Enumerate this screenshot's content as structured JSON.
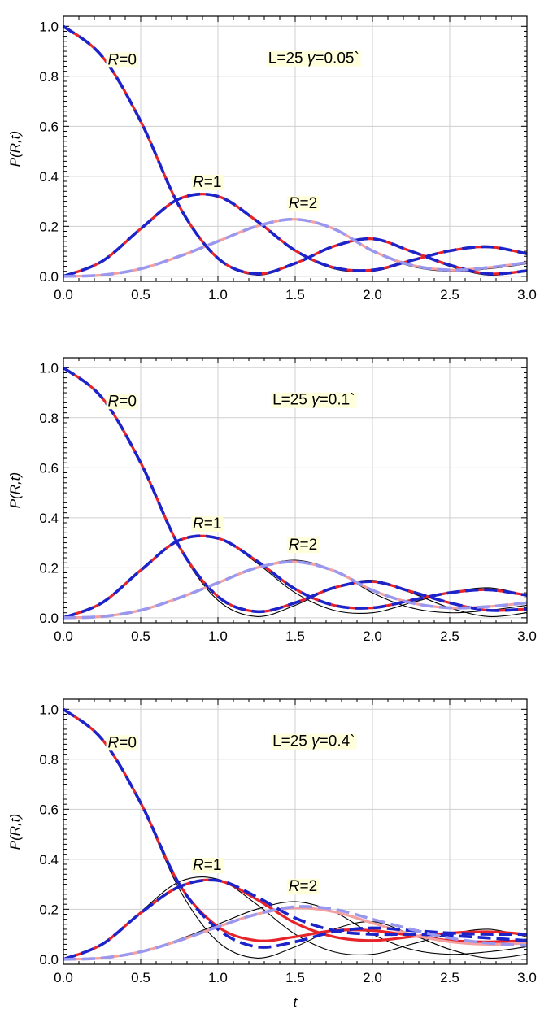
{
  "chart_data": [
    {
      "type": "line",
      "xlabel": "",
      "ylabel": "P(R,t)",
      "xlim": [
        0,
        3
      ],
      "ylim": [
        -0.02,
        1.04
      ],
      "xticks": [
        "0.0",
        "0.5",
        "1.0",
        "1.5",
        "2.0",
        "2.5",
        "3.0"
      ],
      "yticks": [
        "0.0",
        "0.2",
        "0.4",
        "0.6",
        "0.8",
        "1.0"
      ],
      "grid": true,
      "gamma": 0.05,
      "annotations": [
        {
          "italic": "R",
          "text": "=0",
          "x": 0.38,
          "y": 0.87
        },
        {
          "italic": "R",
          "text": "=1",
          "x": 0.93,
          "y": 0.38
        },
        {
          "italic": "R",
          "text": "=2",
          "x": 1.55,
          "y": 0.295
        },
        {
          "prefix": "L=25  ",
          "italic": "γ",
          "text": "=0.05`",
          "x": 1.62,
          "y": 0.875
        }
      ],
      "series": [
        {
          "color": "#000000",
          "style": "thin",
          "x": [
            0,
            0.25,
            0.5,
            0.75,
            1,
            1.25,
            1.5,
            1.75,
            2,
            2.25,
            2.5,
            2.75,
            3
          ],
          "y": [
            1,
            0.88,
            0.62,
            0.28,
            0.07,
            0.005,
            0.05,
            0.12,
            0.15,
            0.1,
            0.04,
            0.005,
            0.02
          ]
        },
        {
          "color": "#000000",
          "style": "thin",
          "x": [
            0,
            0.25,
            0.5,
            0.75,
            1,
            1.25,
            1.5,
            1.75,
            2,
            2.25,
            2.5,
            2.75,
            3
          ],
          "y": [
            0,
            0.06,
            0.19,
            0.31,
            0.32,
            0.22,
            0.1,
            0.03,
            0.02,
            0.06,
            0.1,
            0.12,
            0.09
          ]
        },
        {
          "color": "#000000",
          "style": "thin",
          "x": [
            0,
            0.25,
            0.5,
            0.75,
            1,
            1.25,
            1.5,
            1.75,
            2,
            2.25,
            2.5,
            2.75,
            3
          ],
          "y": [
            0,
            0.005,
            0.03,
            0.08,
            0.14,
            0.2,
            0.23,
            0.19,
            0.1,
            0.04,
            0.02,
            0.03,
            0.05
          ]
        },
        {
          "color": "#e8242b",
          "style": "solid",
          "x": [
            0,
            0.25,
            0.5,
            0.75,
            1,
            1.25,
            1.5,
            1.75,
            2,
            2.25,
            2.5,
            2.75,
            3
          ],
          "y": [
            1,
            0.88,
            0.62,
            0.28,
            0.072,
            0.01,
            0.052,
            0.12,
            0.15,
            0.1,
            0.045,
            0.01,
            0.022
          ]
        },
        {
          "color": "#e8242b",
          "style": "solid",
          "x": [
            0,
            0.25,
            0.5,
            0.75,
            1,
            1.25,
            1.5,
            1.75,
            2,
            2.25,
            2.5,
            2.75,
            3
          ],
          "y": [
            0,
            0.06,
            0.19,
            0.31,
            0.32,
            0.222,
            0.103,
            0.035,
            0.025,
            0.063,
            0.102,
            0.118,
            0.09
          ]
        },
        {
          "color": "#f4a0a0",
          "style": "solid",
          "x": [
            0,
            0.25,
            0.5,
            0.75,
            1,
            1.25,
            1.5,
            1.75,
            2,
            2.25,
            2.5,
            2.75,
            3
          ],
          "y": [
            0,
            0.005,
            0.03,
            0.08,
            0.14,
            0.2,
            0.228,
            0.19,
            0.102,
            0.045,
            0.025,
            0.035,
            0.055
          ]
        },
        {
          "color": "#1c23c9",
          "style": "dashed",
          "x": [
            0,
            0.25,
            0.5,
            0.75,
            1,
            1.25,
            1.5,
            1.75,
            2,
            2.25,
            2.5,
            2.75,
            3
          ],
          "y": [
            1,
            0.88,
            0.62,
            0.28,
            0.072,
            0.01,
            0.052,
            0.12,
            0.15,
            0.1,
            0.045,
            0.01,
            0.022
          ]
        },
        {
          "color": "#1c23c9",
          "style": "dashed",
          "x": [
            0,
            0.25,
            0.5,
            0.75,
            1,
            1.25,
            1.5,
            1.75,
            2,
            2.25,
            2.5,
            2.75,
            3
          ],
          "y": [
            0,
            0.06,
            0.19,
            0.31,
            0.32,
            0.222,
            0.103,
            0.035,
            0.025,
            0.063,
            0.102,
            0.118,
            0.09
          ]
        },
        {
          "color": "#9a97ef",
          "style": "dashed",
          "x": [
            0,
            0.25,
            0.5,
            0.75,
            1,
            1.25,
            1.5,
            1.75,
            2,
            2.25,
            2.5,
            2.75,
            3
          ],
          "y": [
            0,
            0.005,
            0.03,
            0.08,
            0.14,
            0.2,
            0.228,
            0.19,
            0.102,
            0.045,
            0.025,
            0.035,
            0.055
          ]
        }
      ]
    },
    {
      "type": "line",
      "xlabel": "",
      "ylabel": "P(R,t)",
      "xlim": [
        0,
        3
      ],
      "ylim": [
        -0.02,
        1.04
      ],
      "xticks": [
        "0.0",
        "0.5",
        "1.0",
        "1.5",
        "2.0",
        "2.5",
        "3.0"
      ],
      "yticks": [
        "0.0",
        "0.2",
        "0.4",
        "0.6",
        "0.8",
        "1.0"
      ],
      "grid": true,
      "gamma": 0.1,
      "annotations": [
        {
          "italic": "R",
          "text": "=0",
          "x": 0.38,
          "y": 0.87
        },
        {
          "italic": "R",
          "text": "=1",
          "x": 0.93,
          "y": 0.38
        },
        {
          "italic": "R",
          "text": "=2",
          "x": 1.55,
          "y": 0.295
        },
        {
          "prefix": "L=25  ",
          "italic": "γ",
          "text": "=0.1`",
          "x": 1.62,
          "y": 0.875
        }
      ],
      "series": [
        {
          "color": "#000000",
          "style": "thin",
          "x": [
            0,
            0.25,
            0.5,
            0.75,
            1,
            1.25,
            1.5,
            1.75,
            2,
            2.25,
            2.5,
            2.75,
            3
          ],
          "y": [
            1,
            0.88,
            0.62,
            0.28,
            0.07,
            0.005,
            0.05,
            0.12,
            0.15,
            0.1,
            0.04,
            0.005,
            0.02
          ]
        },
        {
          "color": "#000000",
          "style": "thin",
          "x": [
            0,
            0.25,
            0.5,
            0.75,
            1,
            1.25,
            1.5,
            1.75,
            2,
            2.25,
            2.5,
            2.75,
            3
          ],
          "y": [
            0,
            0.06,
            0.19,
            0.31,
            0.32,
            0.22,
            0.1,
            0.03,
            0.02,
            0.06,
            0.1,
            0.12,
            0.09
          ]
        },
        {
          "color": "#000000",
          "style": "thin",
          "x": [
            0,
            0.25,
            0.5,
            0.75,
            1,
            1.25,
            1.5,
            1.75,
            2,
            2.25,
            2.5,
            2.75,
            3
          ],
          "y": [
            0,
            0.005,
            0.03,
            0.08,
            0.14,
            0.2,
            0.23,
            0.19,
            0.1,
            0.04,
            0.02,
            0.03,
            0.05
          ]
        },
        {
          "color": "#e8242b",
          "style": "solid",
          "x": [
            0,
            0.25,
            0.5,
            0.75,
            1,
            1.25,
            1.5,
            1.75,
            2,
            2.25,
            2.5,
            2.75,
            3
          ],
          "y": [
            1,
            0.88,
            0.62,
            0.285,
            0.085,
            0.025,
            0.06,
            0.12,
            0.145,
            0.105,
            0.06,
            0.03,
            0.035
          ]
        },
        {
          "color": "#e8242b",
          "style": "solid",
          "x": [
            0,
            0.25,
            0.5,
            0.75,
            1,
            1.25,
            1.5,
            1.75,
            2,
            2.25,
            2.5,
            2.75,
            3
          ],
          "y": [
            0,
            0.06,
            0.19,
            0.31,
            0.318,
            0.228,
            0.115,
            0.05,
            0.04,
            0.07,
            0.1,
            0.112,
            0.09
          ]
        },
        {
          "color": "#f4a0a0",
          "style": "solid",
          "x": [
            0,
            0.25,
            0.5,
            0.75,
            1,
            1.25,
            1.5,
            1.75,
            2,
            2.25,
            2.5,
            2.75,
            3
          ],
          "y": [
            0,
            0.005,
            0.03,
            0.08,
            0.14,
            0.2,
            0.224,
            0.188,
            0.11,
            0.06,
            0.04,
            0.045,
            0.06
          ]
        },
        {
          "color": "#1c23c9",
          "style": "dashed",
          "x": [
            0,
            0.25,
            0.5,
            0.75,
            1,
            1.25,
            1.5,
            1.75,
            2,
            2.25,
            2.5,
            2.75,
            3
          ],
          "y": [
            1,
            0.88,
            0.62,
            0.285,
            0.085,
            0.025,
            0.06,
            0.12,
            0.145,
            0.105,
            0.06,
            0.03,
            0.035
          ]
        },
        {
          "color": "#1c23c9",
          "style": "dashed",
          "x": [
            0,
            0.25,
            0.5,
            0.75,
            1,
            1.25,
            1.5,
            1.75,
            2,
            2.25,
            2.5,
            2.75,
            3
          ],
          "y": [
            0,
            0.06,
            0.19,
            0.31,
            0.318,
            0.228,
            0.115,
            0.05,
            0.04,
            0.07,
            0.1,
            0.112,
            0.09
          ]
        },
        {
          "color": "#9a97ef",
          "style": "dashed",
          "x": [
            0,
            0.25,
            0.5,
            0.75,
            1,
            1.25,
            1.5,
            1.75,
            2,
            2.25,
            2.5,
            2.75,
            3
          ],
          "y": [
            0,
            0.005,
            0.03,
            0.08,
            0.14,
            0.2,
            0.224,
            0.188,
            0.11,
            0.06,
            0.04,
            0.045,
            0.06
          ]
        }
      ]
    },
    {
      "type": "line",
      "xlabel": "t",
      "ylabel": "P(R,t)",
      "xlim": [
        0,
        3
      ],
      "ylim": [
        -0.02,
        1.04
      ],
      "xticks": [
        "0.0",
        "0.5",
        "1.0",
        "1.5",
        "2.0",
        "2.5",
        "3.0"
      ],
      "yticks": [
        "0.0",
        "0.2",
        "0.4",
        "0.6",
        "0.8",
        "1.0"
      ],
      "grid": true,
      "gamma": 0.4,
      "annotations": [
        {
          "italic": "R",
          "text": "=0",
          "x": 0.38,
          "y": 0.87
        },
        {
          "italic": "R",
          "text": "=1",
          "x": 0.93,
          "y": 0.38
        },
        {
          "italic": "R",
          "text": "=2",
          "x": 1.55,
          "y": 0.295
        },
        {
          "prefix": "L=25  ",
          "italic": "γ",
          "text": "=0.4`",
          "x": 1.62,
          "y": 0.875
        }
      ],
      "series": [
        {
          "color": "#000000",
          "style": "thin",
          "x": [
            0,
            0.25,
            0.5,
            0.75,
            1,
            1.25,
            1.5,
            1.75,
            2,
            2.25,
            2.5,
            2.75,
            3
          ],
          "y": [
            1,
            0.88,
            0.62,
            0.28,
            0.07,
            0.005,
            0.05,
            0.12,
            0.15,
            0.1,
            0.04,
            0.005,
            0.02
          ]
        },
        {
          "color": "#000000",
          "style": "thin",
          "x": [
            0,
            0.25,
            0.5,
            0.75,
            1,
            1.25,
            1.5,
            1.75,
            2,
            2.25,
            2.5,
            2.75,
            3
          ],
          "y": [
            0,
            0.06,
            0.19,
            0.31,
            0.32,
            0.22,
            0.1,
            0.03,
            0.02,
            0.06,
            0.1,
            0.12,
            0.09
          ]
        },
        {
          "color": "#000000",
          "style": "thin",
          "x": [
            0,
            0.25,
            0.5,
            0.75,
            1,
            1.25,
            1.5,
            1.75,
            2,
            2.25,
            2.5,
            2.75,
            3
          ],
          "y": [
            0,
            0.005,
            0.03,
            0.08,
            0.14,
            0.2,
            0.23,
            0.19,
            0.1,
            0.04,
            0.02,
            0.03,
            0.05
          ]
        },
        {
          "color": "#e8242b",
          "style": "solid",
          "x": [
            0,
            0.25,
            0.5,
            0.75,
            1,
            1.25,
            1.5,
            1.75,
            2,
            2.25,
            2.5,
            2.75,
            3
          ],
          "y": [
            1,
            0.88,
            0.625,
            0.3,
            0.13,
            0.075,
            0.09,
            0.115,
            0.115,
            0.095,
            0.075,
            0.07,
            0.075
          ]
        },
        {
          "color": "#e8242b",
          "style": "solid",
          "x": [
            0,
            0.25,
            0.5,
            0.75,
            1,
            1.25,
            1.5,
            1.75,
            2,
            2.25,
            2.5,
            2.75,
            3
          ],
          "y": [
            0,
            0.06,
            0.185,
            0.29,
            0.315,
            0.24,
            0.145,
            0.09,
            0.075,
            0.09,
            0.105,
            0.11,
            0.1
          ]
        },
        {
          "color": "#f4a0a0",
          "style": "solid",
          "x": [
            0,
            0.25,
            0.5,
            0.75,
            1,
            1.25,
            1.5,
            1.75,
            2,
            2.25,
            2.5,
            2.75,
            3
          ],
          "y": [
            0,
            0.005,
            0.03,
            0.075,
            0.13,
            0.18,
            0.205,
            0.19,
            0.145,
            0.1,
            0.07,
            0.06,
            0.065
          ]
        },
        {
          "color": "#1c23c9",
          "style": "dashed",
          "x": [
            0,
            0.25,
            0.5,
            0.75,
            1,
            1.25,
            1.5,
            1.75,
            2,
            2.25,
            2.5,
            2.75,
            3
          ],
          "y": [
            1,
            0.88,
            0.625,
            0.3,
            0.12,
            0.05,
            0.07,
            0.11,
            0.125,
            0.115,
            0.105,
            0.1,
            0.1
          ]
        },
        {
          "color": "#1c23c9",
          "style": "dashed",
          "x": [
            0,
            0.25,
            0.5,
            0.75,
            1,
            1.25,
            1.5,
            1.75,
            2,
            2.25,
            2.5,
            2.75,
            3
          ],
          "y": [
            0,
            0.06,
            0.185,
            0.29,
            0.315,
            0.25,
            0.165,
            0.115,
            0.1,
            0.1,
            0.095,
            0.085,
            0.075
          ]
        },
        {
          "color": "#9a97ef",
          "style": "dashed",
          "x": [
            0,
            0.25,
            0.5,
            0.75,
            1,
            1.25,
            1.5,
            1.75,
            2,
            2.25,
            2.5,
            2.75,
            3
          ],
          "y": [
            0,
            0.005,
            0.03,
            0.075,
            0.13,
            0.18,
            0.21,
            0.2,
            0.16,
            0.12,
            0.085,
            0.065,
            0.055
          ]
        }
      ]
    }
  ]
}
